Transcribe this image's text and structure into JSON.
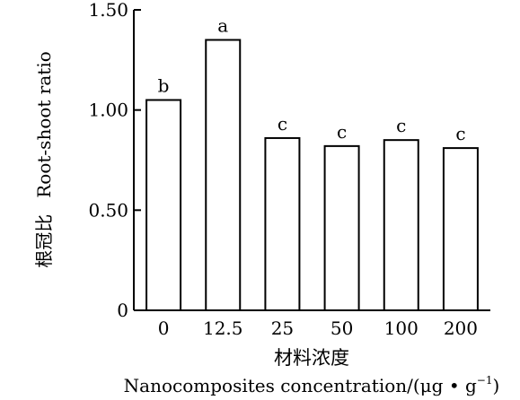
{
  "chart_data": {
    "type": "bar",
    "categories": [
      "0",
      "12.5",
      "25",
      "50",
      "100",
      "200"
    ],
    "values": [
      1.05,
      1.35,
      0.86,
      0.82,
      0.85,
      0.81
    ],
    "data_labels": [
      "b",
      "a",
      "c",
      "c",
      "c",
      "c"
    ],
    "xlabel_cn": "材料浓度",
    "xlabel_en": "Nanocomposites concentration/(μg • g",
    "xlabel_en_sup": "−1",
    "xlabel_en_tail": ")",
    "ylabel_cn": "根冠比",
    "ylabel_en": "Root-shoot ratio",
    "yticks": [
      "0",
      "0.50",
      "1.00",
      "1.50"
    ],
    "ylim": [
      0,
      1.5
    ],
    "grid": false,
    "legend": "none"
  }
}
